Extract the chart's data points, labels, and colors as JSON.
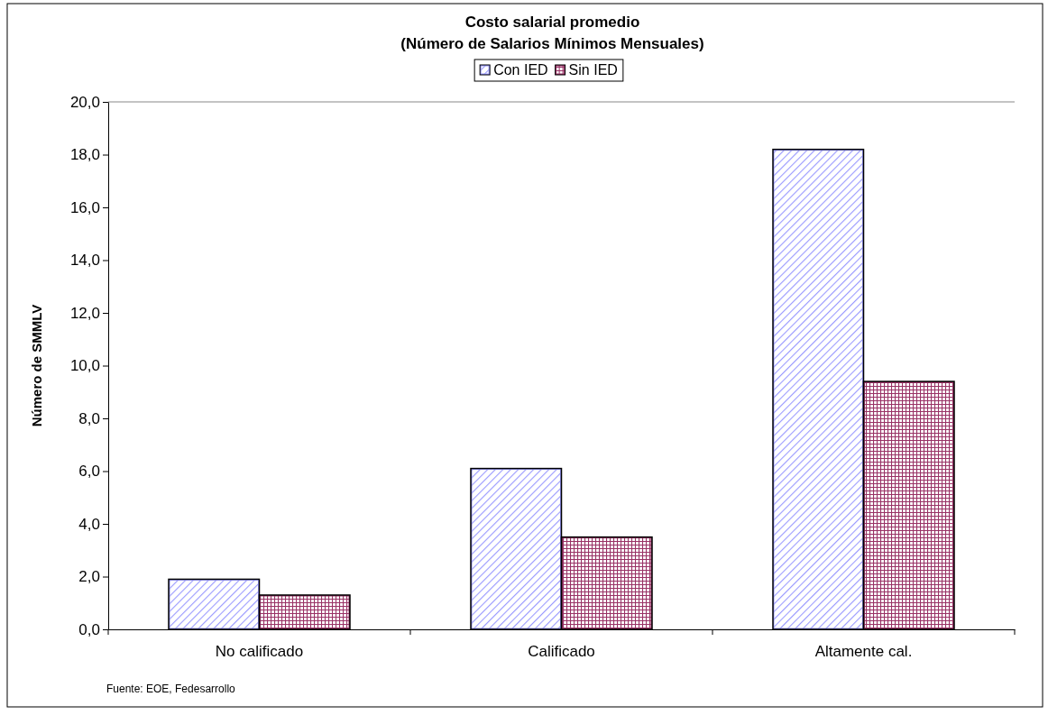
{
  "chart_data": {
    "type": "bar",
    "title": "Costo salarial promedio",
    "subtitle": "(Número de Salarios Mínimos Mensuales)",
    "ylabel": "Número de SMMLV",
    "categories": [
      "No calificado",
      "Calificado",
      "Altamente cal."
    ],
    "series": [
      {
        "name": "Con IED",
        "color": "#9999ff",
        "values": [
          1.9,
          6.1,
          18.2
        ]
      },
      {
        "name": "Sin IED",
        "color": "#993366",
        "values": [
          1.3,
          3.5,
          9.4
        ]
      }
    ],
    "ylim": [
      0,
      20
    ],
    "yticks": [
      {
        "value": 0,
        "label": "0,0"
      },
      {
        "value": 2,
        "label": "2,0"
      },
      {
        "value": 4,
        "label": "4,0"
      },
      {
        "value": 6,
        "label": "6,0"
      },
      {
        "value": 8,
        "label": "8,0"
      },
      {
        "value": 10,
        "label": "10,0"
      },
      {
        "value": 12,
        "label": "12,0"
      },
      {
        "value": 14,
        "label": "14,0"
      },
      {
        "value": 16,
        "label": "16,0"
      },
      {
        "value": 18,
        "label": "18,0"
      },
      {
        "value": 20,
        "label": "20,0"
      }
    ],
    "grid": false,
    "legend": "top",
    "annotations": [
      "Fuente: EOE, Fedesarrollo"
    ]
  }
}
